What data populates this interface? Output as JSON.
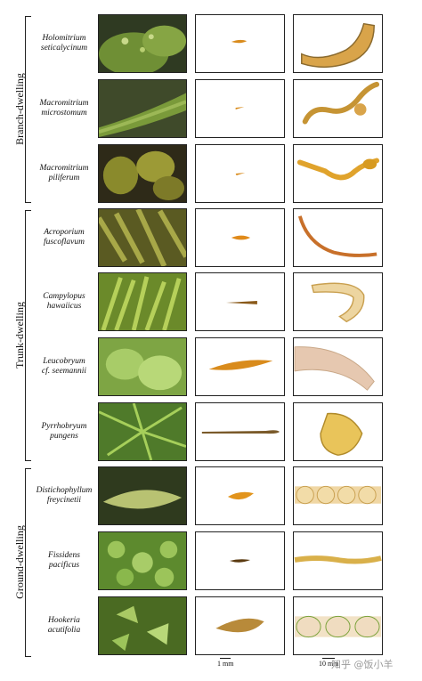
{
  "groups": [
    {
      "label": "Branch-dwelling"
    },
    {
      "label": "Trunk-dwelling"
    },
    {
      "label": "Ground-dwelling"
    }
  ],
  "rows": [
    {
      "name": "Holomitrium\nseticalycinum"
    },
    {
      "name": "Macromitrium\nmicrostomum"
    },
    {
      "name": "Macromitrium\npiliferum"
    },
    {
      "name": "Acroporium\nfuscoflavum"
    },
    {
      "name": "Campylopus\nhawaiicus"
    },
    {
      "name": "Leucobryum\ncf. seemannii"
    },
    {
      "name": "Pyrrhobryum\npungens"
    },
    {
      "name": "Distichophyllum\nfreycinetii"
    },
    {
      "name": "Fissidens\npacificus"
    },
    {
      "name": "Hookeria\nacutifolia"
    }
  ],
  "scales": {
    "leaf": "1 mm",
    "micro": "10 mm"
  },
  "watermark": "知乎 @饭小羊",
  "colors": {
    "border": "#222222",
    "leaf": "#d98b1c",
    "cell": "#e0a32c",
    "pale": "#e8cfb0",
    "moss": "#5c8a2e"
  }
}
